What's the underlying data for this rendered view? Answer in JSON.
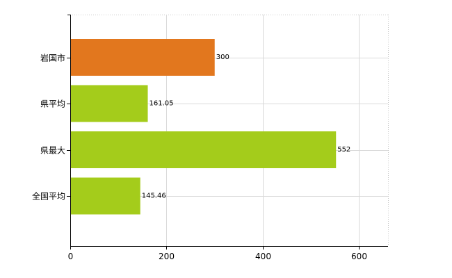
{
  "chart_data": {
    "type": "bar",
    "orientation": "horizontal",
    "title": "",
    "xlabel": "",
    "ylabel": "",
    "categories": [
      "岩国市",
      "県平均",
      "県最大",
      "全国平均"
    ],
    "values": [
      300,
      161.05,
      552,
      145.46
    ],
    "value_labels": [
      "300",
      "161.05",
      "552",
      "145.46"
    ],
    "bar_colors": [
      "#e2771e",
      "#a4cc1b",
      "#a4cc1b",
      "#a4cc1b"
    ],
    "xlim": [
      0,
      660
    ],
    "xticks": [
      0,
      200,
      400,
      600
    ],
    "xtick_labels": [
      "0",
      "200",
      "400",
      "600"
    ],
    "grid": true,
    "legend": "none"
  }
}
